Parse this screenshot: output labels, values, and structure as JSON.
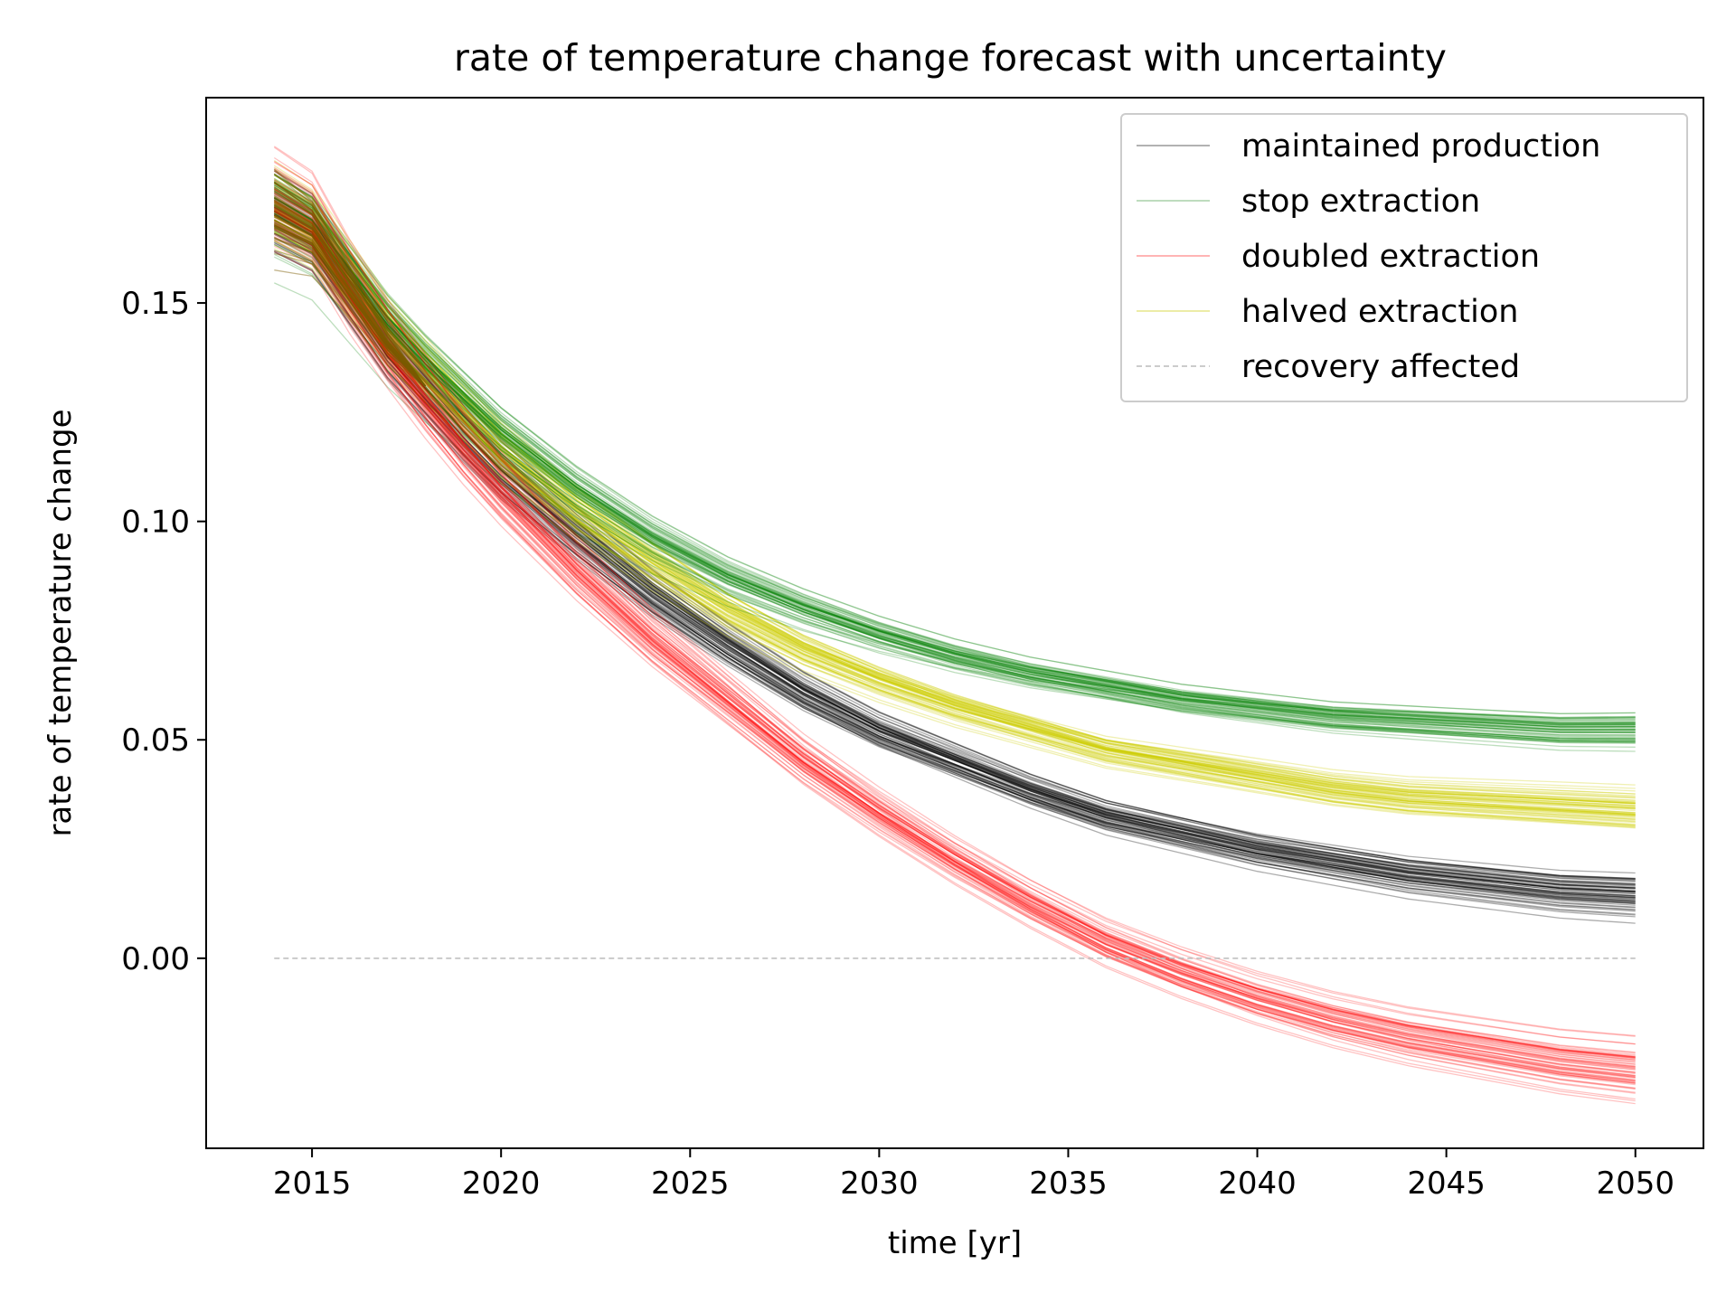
{
  "chart_data": {
    "type": "line",
    "title": "rate of temperature change forecast with uncertainty",
    "xlabel": "time [yr]",
    "ylabel": "rate of temperature change",
    "xlim": [
      2012.2,
      2051.8
    ],
    "ylim": [
      -0.0435,
      0.197
    ],
    "xticks": [
      2015,
      2020,
      2025,
      2030,
      2035,
      2040,
      2045,
      2050
    ],
    "xtick_labels": [
      "2015",
      "2020",
      "2025",
      "2030",
      "2035",
      "2040",
      "2045",
      "2050"
    ],
    "yticks": [
      0.0,
      0.05,
      0.1,
      0.15
    ],
    "ytick_labels": [
      "0.00",
      "0.05",
      "0.10",
      "0.15"
    ],
    "grid": false,
    "legend_position": "top-right",
    "ensemble_members_per_scenario": 60,
    "series": [
      {
        "name": "maintained production",
        "color": "#000000",
        "style": "solid",
        "x": [
          2014,
          2015,
          2016,
          2017,
          2018,
          2019,
          2020,
          2022,
          2024,
          2026,
          2028,
          2030,
          2032,
          2034,
          2036,
          2038,
          2040,
          2042,
          2044,
          2046,
          2048,
          2050
        ],
        "median": [
          0.172,
          0.167,
          0.154,
          0.141,
          0.131,
          0.121,
          0.112,
          0.097,
          0.083,
          0.071,
          0.06,
          0.051,
          0.044,
          0.037,
          0.031,
          0.027,
          0.023,
          0.02,
          0.017,
          0.015,
          0.013,
          0.012
        ],
        "end_range": [
          0.009,
          0.02
        ]
      },
      {
        "name": "stop extraction",
        "color": "#008000",
        "style": "solid",
        "x": [
          2014,
          2015,
          2016,
          2017,
          2018,
          2019,
          2020,
          2022,
          2024,
          2026,
          2028,
          2030,
          2032,
          2034,
          2036,
          2038,
          2040,
          2042,
          2044,
          2046,
          2048,
          2050
        ],
        "median": [
          0.172,
          0.167,
          0.156,
          0.145,
          0.136,
          0.128,
          0.12,
          0.107,
          0.096,
          0.087,
          0.08,
          0.074,
          0.069,
          0.065,
          0.062,
          0.059,
          0.057,
          0.055,
          0.054,
          0.053,
          0.052,
          0.052
        ],
        "end_range": [
          0.047,
          0.058
        ]
      },
      {
        "name": "doubled extraction",
        "color": "#ff0000",
        "style": "solid",
        "x": [
          2014,
          2015,
          2016,
          2017,
          2018,
          2019,
          2020,
          2022,
          2024,
          2026,
          2028,
          2030,
          2032,
          2034,
          2036,
          2038,
          2040,
          2042,
          2044,
          2046,
          2048,
          2050
        ],
        "median": [
          0.172,
          0.167,
          0.152,
          0.139,
          0.127,
          0.116,
          0.106,
          0.088,
          0.072,
          0.058,
          0.044,
          0.032,
          0.021,
          0.011,
          0.002,
          -0.005,
          -0.011,
          -0.016,
          -0.02,
          -0.023,
          -0.026,
          -0.028
        ],
        "end_range": [
          -0.033,
          -0.018
        ]
      },
      {
        "name": "halved extraction",
        "color": "#cccc00",
        "style": "solid",
        "x": [
          2014,
          2015,
          2016,
          2017,
          2018,
          2019,
          2020,
          2022,
          2024,
          2026,
          2028,
          2030,
          2032,
          2034,
          2036,
          2038,
          2040,
          2042,
          2044,
          2046,
          2048,
          2050
        ],
        "median": [
          0.172,
          0.167,
          0.155,
          0.143,
          0.134,
          0.125,
          0.116,
          0.102,
          0.09,
          0.079,
          0.07,
          0.063,
          0.057,
          0.052,
          0.047,
          0.044,
          0.041,
          0.038,
          0.036,
          0.035,
          0.034,
          0.033
        ],
        "end_range": [
          0.028,
          0.039
        ]
      },
      {
        "name": "recovery affected",
        "color": "#bbbbbb",
        "style": "dashed",
        "x": [
          2014,
          2050
        ],
        "values": [
          0.0,
          0.0
        ]
      }
    ]
  }
}
